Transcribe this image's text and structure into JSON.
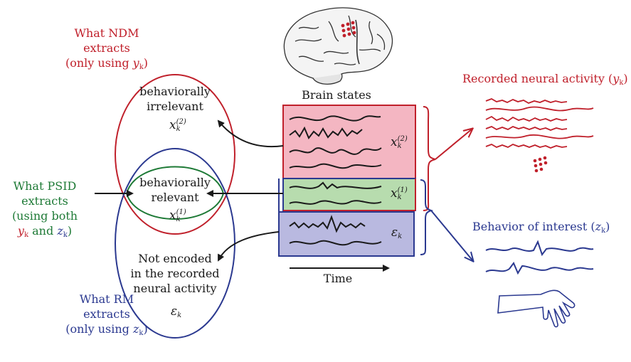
{
  "ndm": {
    "title": "What NDM",
    "line2": "extracts",
    "line3": "(only using",
    "var": "y",
    "sub": "k",
    "close": ")"
  },
  "psid": {
    "line1": "What PSID",
    "line2": "extracts",
    "line3": "(using both",
    "var1": "y",
    "sub1": "k",
    "and": "and",
    "var2": "z",
    "sub2": "k",
    "close": ")"
  },
  "rm": {
    "line1": "What RM",
    "line2": "extracts",
    "line3": "(only using",
    "var": "z",
    "sub": "k",
    "close": ")"
  },
  "regions": {
    "irrelevant": {
      "line1": "behaviorally",
      "line2": "irrelevant",
      "var": "x",
      "sub": "k",
      "sup": "(2)"
    },
    "relevant": {
      "line1": "behaviorally",
      "line2": "relevant",
      "var": "x",
      "sub": "k",
      "sup": "(1)"
    },
    "not_encoded": {
      "line1": "Not encoded",
      "line2": "in the recorded",
      "line3": "neural activity",
      "var": "ε",
      "sub": "k"
    }
  },
  "brain_states": "Brain states",
  "time": "Time",
  "box_labels": {
    "x2": {
      "var": "x",
      "sub": "k",
      "sup": "(2)"
    },
    "x1": {
      "var": "x",
      "sub": "k",
      "sup": "(1)"
    },
    "eps": {
      "var": "ε",
      "sub": "k"
    }
  },
  "recorded": {
    "text": "Recorded neural activity (",
    "var": "y",
    "sub": "k",
    "close": ")"
  },
  "behavior": {
    "text": "Behavior of interest (",
    "var": "z",
    "sub": "k",
    "close": ")"
  },
  "colors": {
    "red": "#c0202b",
    "green": "#1e7a36",
    "blue": "#2b3990",
    "pink": "#f4b6c2",
    "lightgreen": "#b7dcae",
    "lavender": "#b9b9e0"
  },
  "icons": [
    "brain-icon",
    "electrode-array-icon",
    "hand-arm-icon"
  ]
}
